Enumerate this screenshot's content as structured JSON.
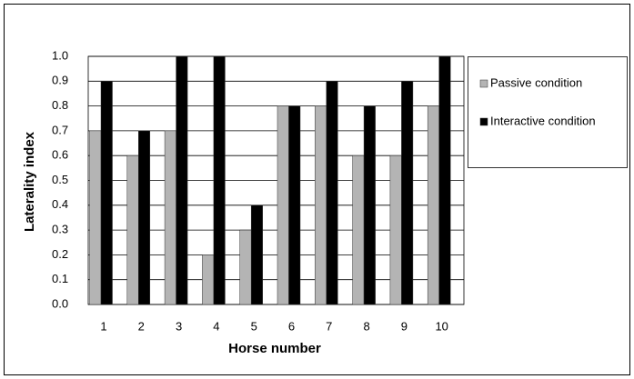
{
  "chart_data": {
    "type": "bar",
    "categories": [
      "1",
      "2",
      "3",
      "4",
      "5",
      "6",
      "7",
      "8",
      "9",
      "10"
    ],
    "series": [
      {
        "name": "Passive condition",
        "color": "#b4b4b4",
        "values": [
          0.7,
          0.6,
          0.7,
          0.2,
          0.3,
          0.8,
          0.8,
          0.6,
          0.6,
          0.8
        ]
      },
      {
        "name": "Interactive condition",
        "color": "#000000",
        "values": [
          0.9,
          0.7,
          1.0,
          1.0,
          0.4,
          0.8,
          0.9,
          0.8,
          0.9,
          1.0
        ]
      }
    ],
    "xlabel": "Horse number",
    "ylabel": "Laterality index",
    "ylim": [
      0,
      1
    ],
    "yticks": [
      {
        "value": 0,
        "label": "0.0"
      },
      0.1,
      0.2,
      0.3,
      0.4,
      0.5,
      0.6,
      0.7,
      0.8,
      0.9,
      {
        "value": 1,
        "label": "1.0"
      }
    ],
    "grid": true,
    "legend": "right"
  }
}
